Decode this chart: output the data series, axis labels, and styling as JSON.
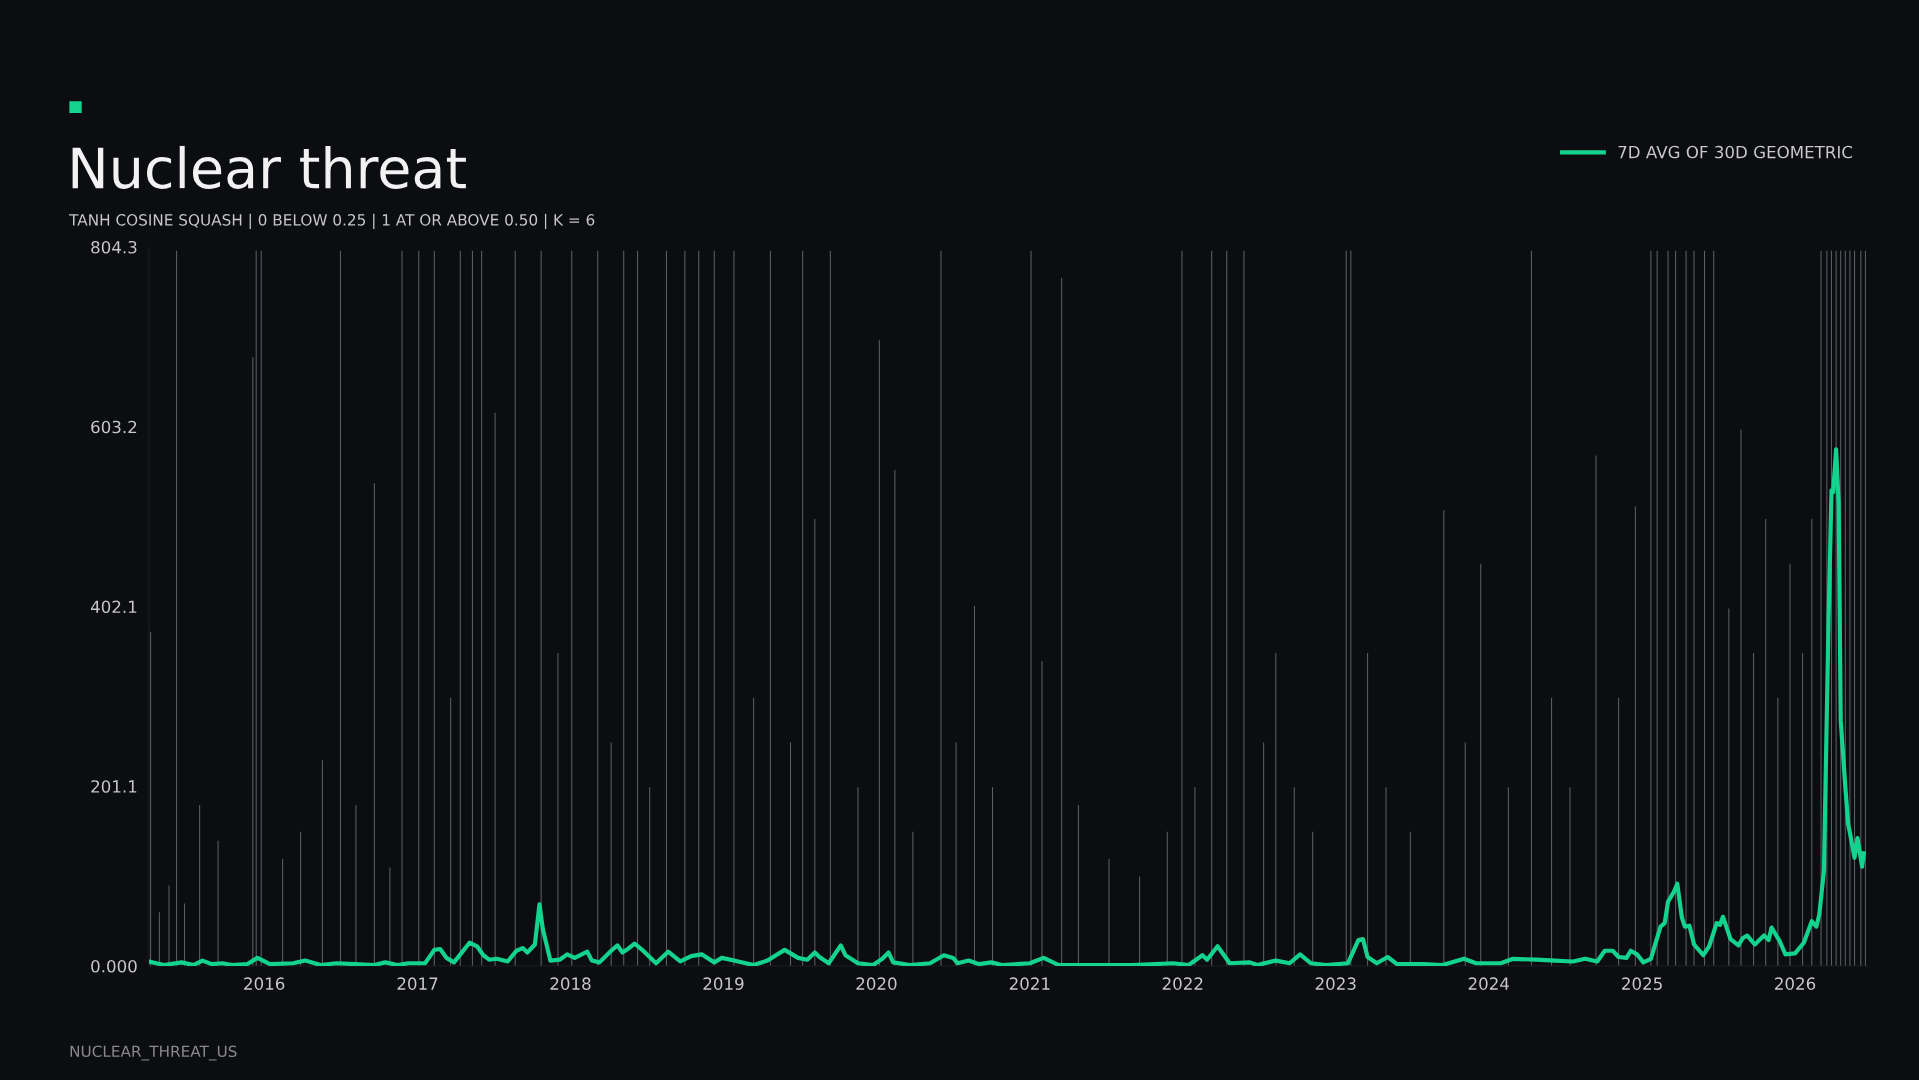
{
  "chart_data": {
    "type": "line",
    "title": "Nuclear threat",
    "subtitle": "TANH COSINE SQUASH | 0 BELOW 0.25 | 1 AT OR ABOVE 0.50 | K = 6",
    "annotations": [
      "NUCLEAR_THREAT_US"
    ],
    "xlim": [
      "2015-04-01",
      "2026-06-24"
    ],
    "xticks": [
      {
        "value": "2016-01-01",
        "label": "2016"
      },
      {
        "value": "2017-01-01",
        "label": "2017"
      },
      {
        "value": "2018-01-01",
        "label": "2018"
      },
      {
        "value": "2019-01-01",
        "label": "2019"
      },
      {
        "value": "2020-01-01",
        "label": "2020"
      },
      {
        "value": "2021-01-01",
        "label": "2021"
      },
      {
        "value": "2022-01-01",
        "label": "2022"
      },
      {
        "value": "2023-01-01",
        "label": "2023"
      },
      {
        "value": "2024-01-01",
        "label": "2024"
      },
      {
        "value": "2025-01-01",
        "label": "2025"
      },
      {
        "value": "2026-01-01",
        "label": "2026"
      }
    ],
    "ylim": [
      0,
      804.3
    ],
    "yticks": [
      {
        "value": 0,
        "label": "0.000"
      },
      201.1,
      402.1,
      603.2,
      804.3
    ],
    "grid": false,
    "legend": "top right",
    "series": [
      {
        "type": "bar",
        "color": "#5c5f66",
        "x": [
          "2015-04-05",
          "2015-04-26",
          "2015-05-19",
          "2015-06-06",
          "2015-06-25",
          "2015-07-31",
          "2015-09-13",
          "2015-12-05",
          "2015-12-13",
          "2015-12-25",
          "2016-02-14",
          "2016-03-28",
          "2016-05-19",
          "2016-07-01",
          "2016-08-07",
          "2016-09-20",
          "2016-10-27",
          "2016-11-25",
          "2017-01-04",
          "2017-02-10",
          "2017-03-21",
          "2017-04-13",
          "2017-05-12",
          "2017-06-03",
          "2017-07-05",
          "2017-08-22",
          "2017-10-23",
          "2017-12-02",
          "2018-01-04",
          "2018-03-07",
          "2018-04-08",
          "2018-05-08",
          "2018-06-10",
          "2018-07-09",
          "2018-08-18",
          "2018-10-01",
          "2018-11-03",
          "2018-12-10",
          "2019-01-26",
          "2019-03-14",
          "2019-04-23",
          "2019-06-10",
          "2019-07-09",
          "2019-08-07",
          "2019-09-13",
          "2019-11-18",
          "2020-01-08",
          "2020-02-14",
          "2020-03-28",
          "2020-06-03",
          "2020-07-09",
          "2020-08-22",
          "2020-10-04",
          "2021-01-04",
          "2021-01-30",
          "2021-03-18",
          "2021-04-27",
          "2021-07-09",
          "2021-09-20",
          "2021-11-25",
          "2021-12-30",
          "2022-01-30",
          "2022-03-11",
          "2022-04-16",
          "2022-05-27",
          "2022-07-13",
          "2022-08-11",
          "2022-09-24",
          "2022-11-07",
          "2023-01-26",
          "2023-02-06",
          "2023-03-18",
          "2023-05-01",
          "2023-06-28",
          "2023-09-16",
          "2023-11-06",
          "2023-12-13",
          "2024-02-17",
          "2024-04-12",
          "2024-05-30",
          "2024-07-13",
          "2024-09-13",
          "2024-11-06",
          "2024-12-16",
          "2025-01-22",
          "2025-02-06",
          "2025-03-04",
          "2025-03-22",
          "2025-04-16",
          "2025-05-05",
          "2025-05-30",
          "2025-06-21",
          "2025-07-27",
          "2025-08-25",
          "2025-09-24",
          "2025-10-23",
          "2025-11-21",
          "2025-12-20",
          "2026-01-19",
          "2026-02-10",
          "2026-03-04",
          "2026-03-18",
          "2026-03-29",
          "2026-04-09",
          "2026-04-20",
          "2026-05-01",
          "2026-05-12",
          "2026-05-23",
          "2026-06-07",
          "2026-06-18"
        ],
        "values": [
          374,
          60,
          90,
          800,
          70,
          180,
          140,
          681,
          800,
          800,
          120,
          150,
          230,
          800,
          180,
          540,
          110,
          800,
          800,
          800,
          300,
          800,
          800,
          800,
          619,
          800,
          800,
          350,
          800,
          800,
          250,
          800,
          800,
          200,
          800,
          800,
          800,
          800,
          800,
          300,
          800,
          250,
          800,
          500,
          800,
          200,
          700,
          555,
          150,
          800,
          250,
          403,
          200,
          800,
          341,
          770,
          180,
          120,
          100,
          150,
          800,
          200,
          800,
          800,
          800,
          250,
          350,
          200,
          150,
          800,
          800,
          350,
          200,
          150,
          510,
          250,
          450,
          200,
          800,
          300,
          200,
          571,
          300,
          514,
          800,
          800,
          800,
          800,
          800,
          800,
          800,
          800,
          400,
          600,
          350,
          500,
          300,
          450,
          350,
          500,
          800,
          800,
          800,
          800,
          800,
          800,
          800,
          800,
          800,
          800
        ]
      },
      {
        "name": "7D AVG OF 30D GEOMETRIC",
        "color": "#14d38f",
        "x": [
          "2015-04-01",
          "2015-05-07",
          "2015-06-18",
          "2015-07-16",
          "2015-08-07",
          "2015-08-29",
          "2015-09-24",
          "2015-10-16",
          "2015-11-21",
          "2015-12-16",
          "2016-01-15",
          "2016-03-10",
          "2016-04-08",
          "2016-05-15",
          "2016-06-21",
          "2016-08-04",
          "2016-09-20",
          "2016-10-16",
          "2016-11-14",
          "2016-12-10",
          "2017-01-19",
          "2017-02-10",
          "2017-02-24",
          "2017-03-11",
          "2017-03-29",
          "2017-05-05",
          "2017-05-23",
          "2017-06-07",
          "2017-06-21",
          "2017-07-09",
          "2017-08-04",
          "2017-08-25",
          "2017-09-09",
          "2017-09-20",
          "2017-10-08",
          "2017-10-19",
          "2017-10-27",
          "2017-11-14",
          "2017-12-06",
          "2017-12-24",
          "2018-01-11",
          "2018-02-10",
          "2018-02-21",
          "2018-03-11",
          "2018-04-08",
          "2018-04-23",
          "2018-05-05",
          "2018-05-15",
          "2018-06-03",
          "2018-06-21",
          "2018-07-24",
          "2018-08-22",
          "2018-09-20",
          "2018-10-16",
          "2018-11-10",
          "2018-12-10",
          "2018-12-28",
          "2019-01-26",
          "2019-03-14",
          "2019-04-16",
          "2019-05-27",
          "2019-06-28",
          "2019-07-20",
          "2019-08-07",
          "2019-08-18",
          "2019-09-09",
          "2019-10-08",
          "2019-10-19",
          "2019-11-18",
          "2019-12-24",
          "2020-01-15",
          "2020-01-30",
          "2020-02-10",
          "2020-03-21",
          "2020-05-08",
          "2020-06-10",
          "2020-07-02",
          "2020-07-13",
          "2020-08-08",
          "2020-09-02",
          "2020-10-01",
          "2020-10-27",
          "2021-01-01",
          "2021-02-03",
          "2021-03-11",
          "2021-06-03",
          "2021-09-02",
          "2021-12-09",
          "2022-01-15",
          "2022-02-17",
          "2022-02-28",
          "2022-03-25",
          "2022-04-23",
          "2022-06-10",
          "2022-06-28",
          "2022-08-11",
          "2022-09-13",
          "2022-10-08",
          "2022-11-03",
          "2022-12-09",
          "2023-01-30",
          "2023-02-24",
          "2023-03-07",
          "2023-03-18",
          "2023-04-09",
          "2023-05-05",
          "2023-05-27",
          "2023-07-28",
          "2023-09-13",
          "2023-11-03",
          "2023-12-02",
          "2024-01-30",
          "2024-02-28",
          "2024-04-23",
          "2024-06-07",
          "2024-07-20",
          "2024-08-18",
          "2024-09-16",
          "2024-10-04",
          "2024-10-23",
          "2024-11-06",
          "2024-11-25",
          "2024-12-05",
          "2024-12-20",
          "2025-01-04",
          "2025-01-22",
          "2025-02-14",
          "2025-02-24",
          "2025-03-04",
          "2025-03-18",
          "2025-03-26",
          "2025-04-06",
          "2025-04-13",
          "2025-04-24",
          "2025-05-05",
          "2025-05-27",
          "2025-06-10",
          "2025-06-28",
          "2025-07-06",
          "2025-07-13",
          "2025-07-31",
          "2025-08-19",
          "2025-08-29",
          "2025-09-09",
          "2025-09-27",
          "2025-10-19",
          "2025-10-30",
          "2025-11-06",
          "2025-11-25",
          "2025-12-09",
          "2026-01-01",
          "2026-01-22",
          "2026-02-10",
          "2026-02-21",
          "2026-02-28",
          "2026-03-11",
          "2026-03-22",
          "2026-03-29",
          "2026-04-02",
          "2026-04-09",
          "2026-04-15",
          "2026-04-20",
          "2026-05-01",
          "2026-05-08",
          "2026-05-12",
          "2026-05-23",
          "2026-05-30",
          "2026-06-10",
          "2026-06-14"
        ],
        "values": [
          5,
          1,
          4,
          1,
          6,
          2,
          3,
          1,
          2,
          9,
          2,
          3,
          6,
          1,
          3,
          2,
          1,
          4,
          1,
          3,
          3,
          18,
          19,
          9,
          4,
          26,
          22,
          12,
          7,
          8,
          5,
          17,
          20,
          15,
          24,
          69,
          41,
          6,
          7,
          13,
          9,
          16,
          6,
          4,
          17,
          23,
          15,
          18,
          25,
          18,
          3,
          16,
          5,
          11,
          13,
          4,
          9,
          6,
          1,
          6,
          18,
          9,
          7,
          15,
          10,
          3,
          23,
          12,
          3,
          1,
          8,
          15,
          4,
          1,
          3,
          12,
          9,
          3,
          6,
          2,
          4,
          1,
          3,
          9,
          1,
          1,
          1,
          3,
          1,
          12,
          7,
          22,
          3,
          4,
          1,
          6,
          3,
          13,
          3,
          1,
          3,
          29,
          30,
          10,
          3,
          10,
          2,
          2,
          1,
          8,
          3,
          3,
          8,
          7,
          6,
          5,
          8,
          5,
          17,
          17,
          10,
          9,
          17,
          13,
          4,
          8,
          44,
          48,
          72,
          83,
          92,
          54,
          44,
          45,
          24,
          12,
          22,
          48,
          46,
          55,
          30,
          23,
          31,
          34,
          24,
          34,
          29,
          43,
          28,
          13,
          14,
          26,
          50,
          44,
          58,
          107,
          387,
          532,
          530,
          578,
          518,
          275,
          200,
          158,
          149,
          121,
          143,
          111,
          126
        ]
      }
    ]
  }
}
